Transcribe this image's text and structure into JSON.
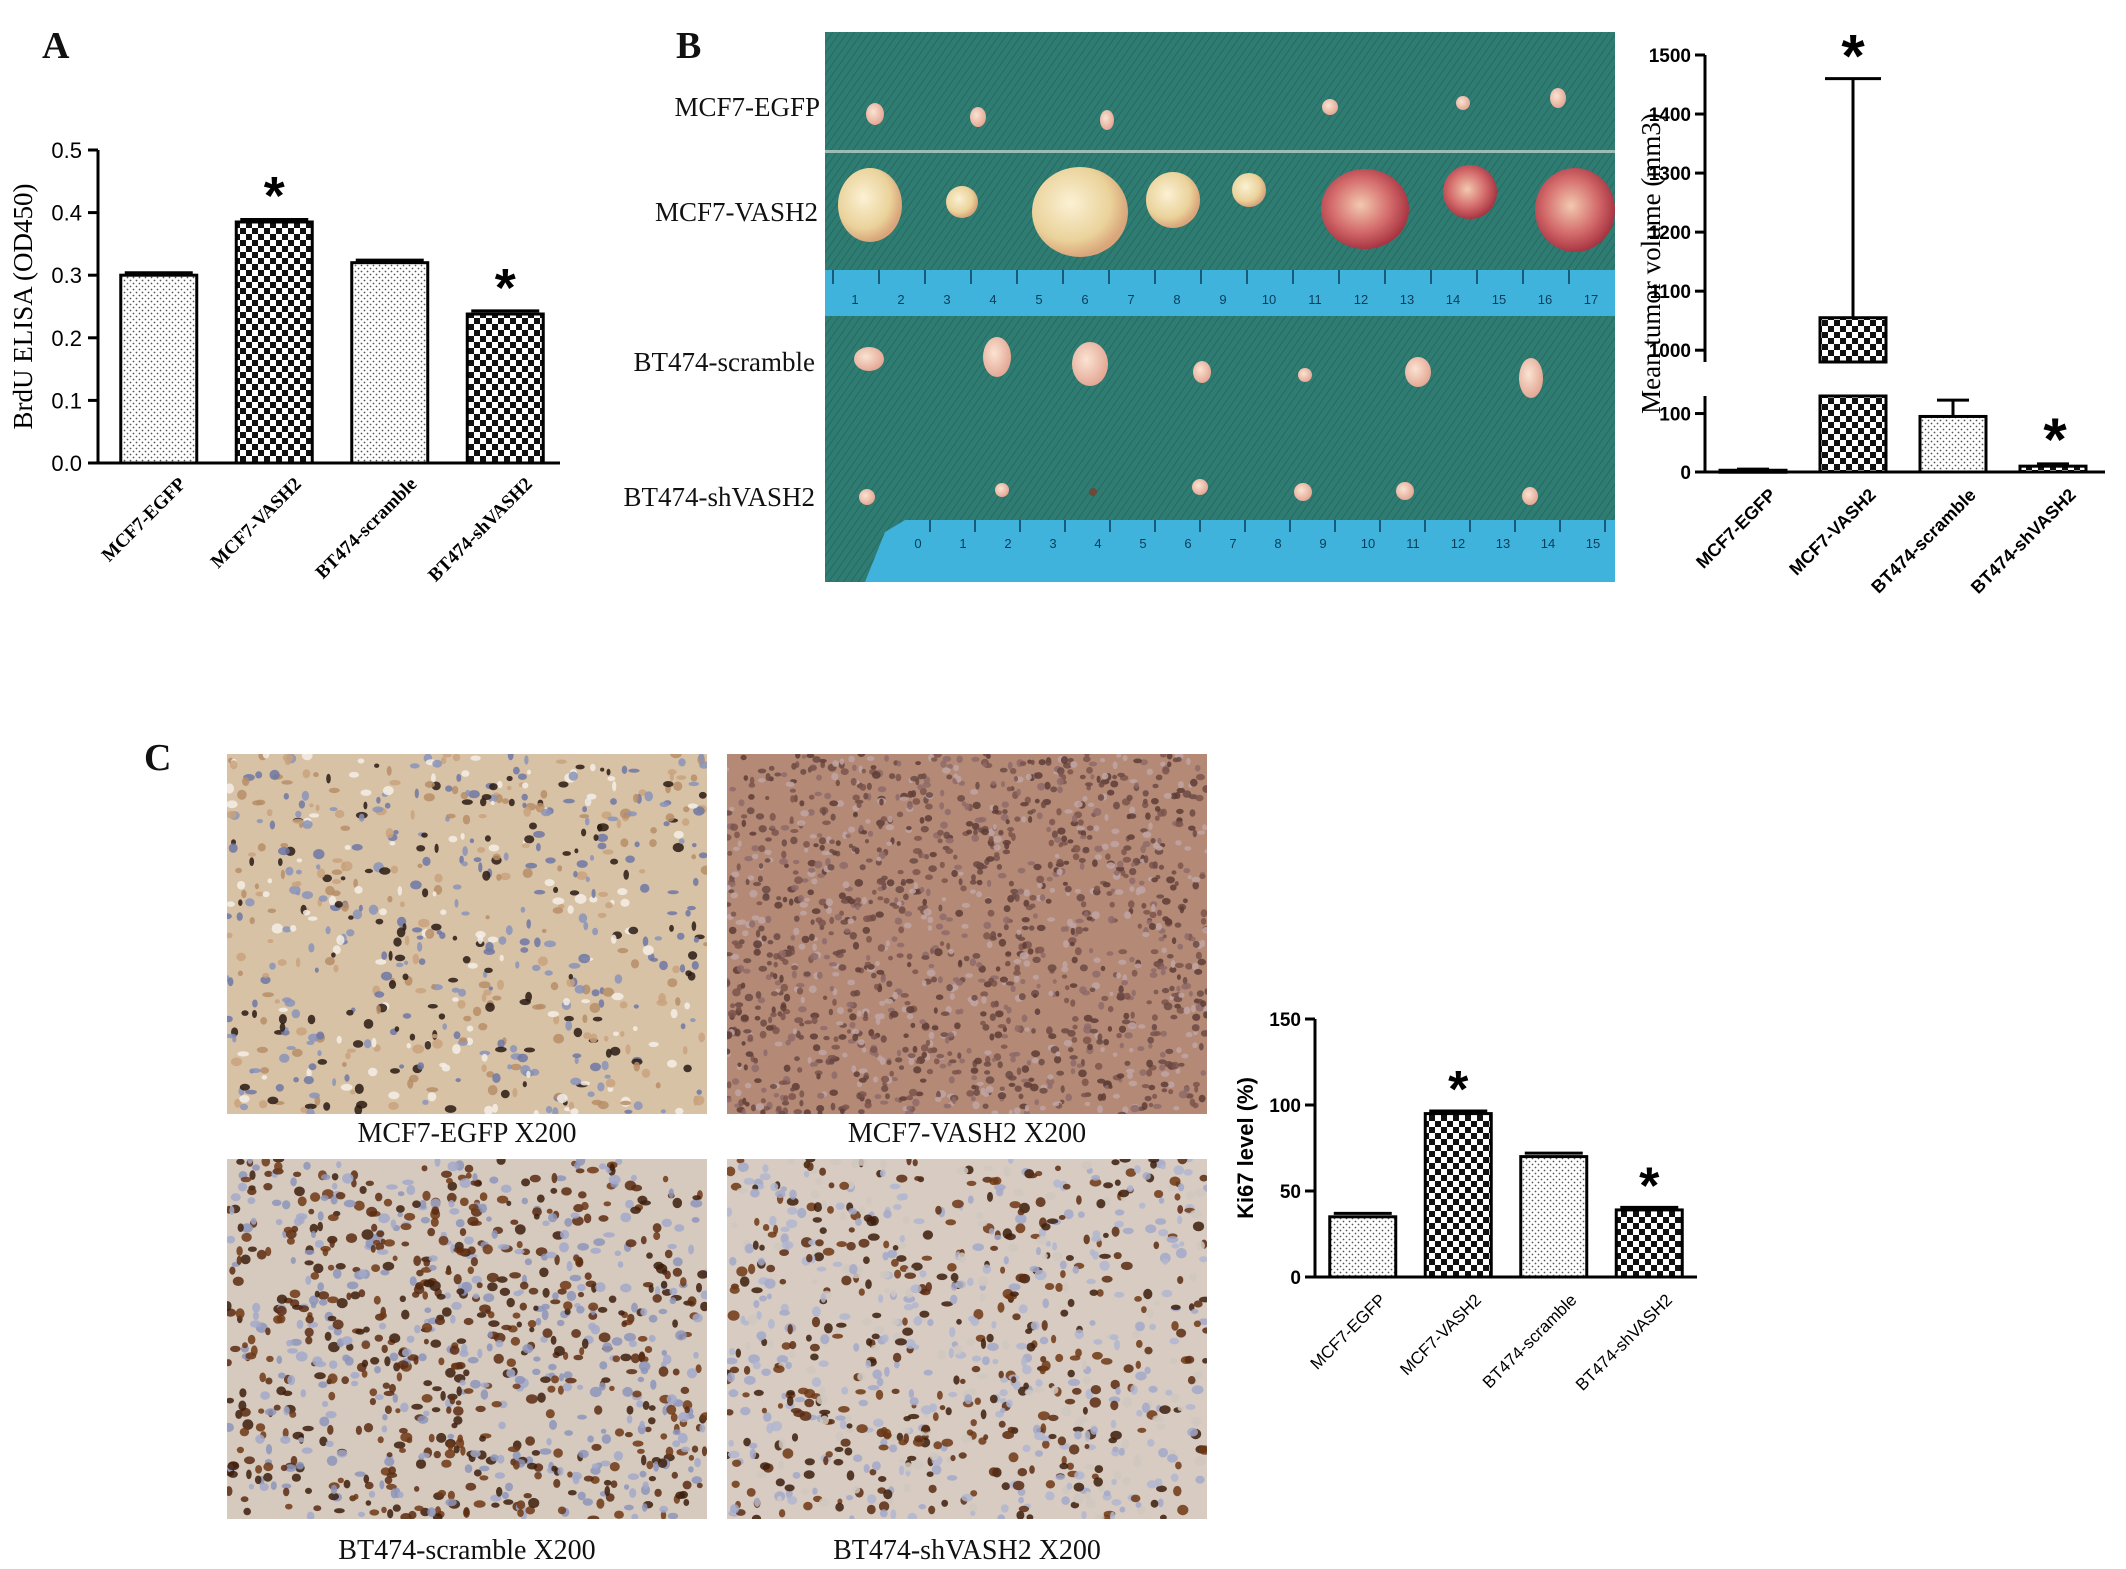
{
  "panels": {
    "a_label": "A",
    "b_label": "B",
    "c_label": "C"
  },
  "panel_b": {
    "row_labels": [
      "MCF7-EGFP",
      "MCF7-VASH2",
      "BT474-scramble",
      "BT474-shVASH2"
    ],
    "ruler_top_ticks": [
      "1",
      "2",
      "3",
      "4",
      "5",
      "6",
      "7",
      "8",
      "9",
      "10",
      "11",
      "12",
      "13",
      "14",
      "15",
      "16",
      "17"
    ],
    "ruler_bottom_ticks": [
      "0",
      "1",
      "2",
      "3",
      "4",
      "5",
      "6",
      "7",
      "8",
      "9",
      "10",
      "11",
      "12",
      "13",
      "14",
      "15"
    ]
  },
  "panel_c": {
    "captions": [
      "MCF7-EGFP X200",
      "MCF7-VASH2 X200",
      "BT474-scramble X200",
      "BT474-shVASH2 X200"
    ]
  },
  "colors": {
    "green_cloth": "#2e7c72",
    "ruler": "#3fb3dc",
    "tumor": "#f0ddb5",
    "ihc_bg": "#d9c6b0",
    "ihc_brown": "#6b3d1e"
  },
  "chart_data": [
    {
      "id": "chart_a",
      "type": "bar",
      "categories": [
        "MCF7-EGFP",
        "MCF7-VASH2",
        "BT474-scramble",
        "BT474-shVASH2"
      ],
      "values": [
        0.3,
        0.385,
        0.32,
        0.238
      ],
      "errors": [
        0.004,
        0.004,
        0.004,
        0.005
      ],
      "patterns": [
        "dots",
        "checker",
        "dots",
        "checker"
      ],
      "significant": [
        false,
        true,
        false,
        true
      ],
      "significance_marker": "*",
      "ylabel": "BrdU ELISA (OD450)",
      "ylim": [
        0,
        0.5
      ],
      "yticks": [
        "0.0",
        "0.1",
        "0.2",
        "0.3",
        "0.4",
        "0.5"
      ]
    },
    {
      "id": "chart_b",
      "type": "bar",
      "categories": [
        "MCF7-EGFP",
        "MCF7-VASH2",
        "BT474-scramble",
        "BT474-shVASH2"
      ],
      "values": [
        3,
        1055,
        95,
        10
      ],
      "errors": [
        2,
        405,
        28,
        4
      ],
      "patterns": [
        "dots",
        "checker",
        "dots",
        "checker"
      ],
      "significant": [
        false,
        true,
        false,
        true
      ],
      "significance_marker": "*",
      "ylabel": "Mean tumor volume (mm3)",
      "axis_break": [
        130,
        980
      ],
      "yticks_lower": [
        "0",
        "100"
      ],
      "yticks_upper": [
        "1000",
        "1100",
        "1200",
        "1300",
        "1400",
        "1500"
      ]
    },
    {
      "id": "chart_c",
      "type": "bar",
      "categories": [
        "MCF7-EGFP",
        "MCF7-VASH2",
        "BT474-scramble",
        "BT474-shVASH2"
      ],
      "values": [
        35,
        95,
        70,
        39
      ],
      "errors": [
        2,
        1.5,
        2,
        1.5
      ],
      "patterns": [
        "dots",
        "checker",
        "dots",
        "checker"
      ],
      "significant": [
        false,
        true,
        false,
        true
      ],
      "significance_marker": "*",
      "ylabel": "Ki67 level (%)",
      "ylim": [
        0,
        150
      ],
      "yticks": [
        "0",
        "50",
        "100",
        "150"
      ]
    }
  ]
}
